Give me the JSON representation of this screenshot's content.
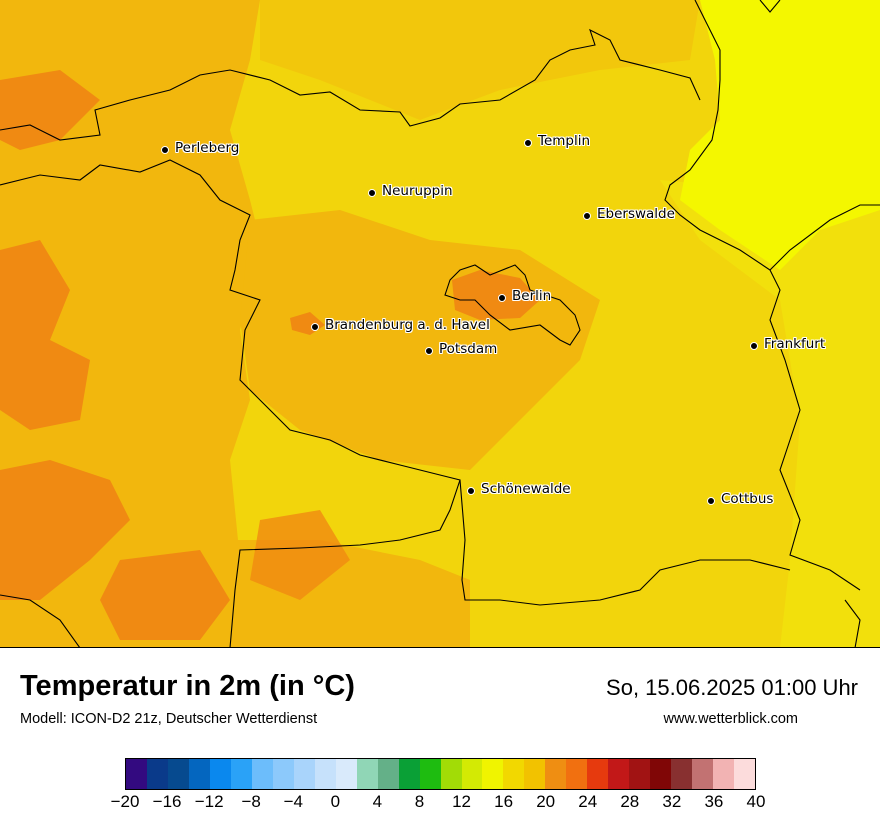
{
  "map": {
    "title": "Temperatur in 2m (in °C)",
    "model": "Modell: ICON-D2 21z, Deutscher Wetterdienst",
    "datetime": "So, 15.06.2025 01:00 Uhr",
    "website": "www.wetterblick.com",
    "field_colors": {
      "band_16_18": "#f2e70e",
      "band_18_20": "#f2d50c",
      "band_20_22": "#f2b70d",
      "band_22_24": "#f08a12",
      "band_14_16": "#f4f700"
    },
    "cities": [
      {
        "name": "Perleberg"
      },
      {
        "name": "Templin"
      },
      {
        "name": "Neuruppin"
      },
      {
        "name": "Eberswalde"
      },
      {
        "name": "Berlin"
      },
      {
        "name": "Brandenburg a. d. Havel"
      },
      {
        "name": "Potsdam"
      },
      {
        "name": "Frankfurt"
      },
      {
        "name": "Schönewalde"
      },
      {
        "name": "Cottbus"
      }
    ]
  },
  "legend": {
    "colors": [
      "#330a80",
      "#0a3a8a",
      "#064a8f",
      "#0466bf",
      "#0a88ee",
      "#2aa2f7",
      "#6cbdfb",
      "#8cc9fb",
      "#a9d4fb",
      "#c6e1fb",
      "#d9eafb",
      "#90d6b6",
      "#64b088",
      "#0aa036",
      "#1ebc10",
      "#a2dc06",
      "#d3ea04",
      "#f0f400",
      "#f2d800",
      "#f2c200",
      "#ef8e12",
      "#f17010",
      "#e63a0e",
      "#c21818",
      "#a11313",
      "#800606",
      "#883030",
      "#c27272",
      "#f2b3b3",
      "#fcdcdc"
    ],
    "ticks": [
      "−20",
      "−16",
      "−12",
      "−8",
      "−4",
      "0",
      "4",
      "8",
      "12",
      "16",
      "20",
      "24",
      "28",
      "32",
      "36",
      "40"
    ]
  }
}
